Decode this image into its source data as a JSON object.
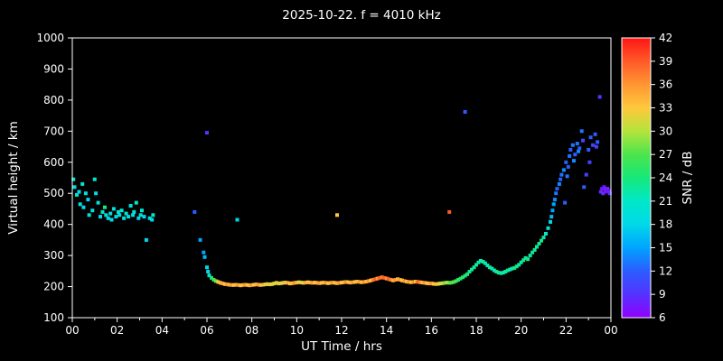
{
  "chart_data": {
    "type": "scatter",
    "title": "2025-10-22. f = 4010 kHz",
    "xlabel": "UT Time / hrs",
    "ylabel": "Virtual height / km",
    "xlim": [
      0,
      24
    ],
    "ylim": [
      100,
      1000
    ],
    "x_tick_values": [
      0,
      2,
      4,
      6,
      8,
      10,
      12,
      14,
      16,
      18,
      20,
      22,
      24
    ],
    "x_tick_labels": [
      "00",
      "02",
      "04",
      "06",
      "08",
      "10",
      "12",
      "14",
      "16",
      "18",
      "20",
      "22",
      "00"
    ],
    "y_tick_values": [
      100,
      200,
      300,
      400,
      500,
      600,
      700,
      800,
      900,
      1000
    ],
    "grid": false,
    "legend": "none",
    "marker": "square",
    "colors": {
      "background": "#000000",
      "axis": "#ffffff",
      "text": "#ffffff"
    },
    "colorbar": {
      "label": "SNR / dB",
      "min": 6,
      "max": 42,
      "tick_values": [
        6,
        9,
        12,
        15,
        18,
        21,
        24,
        27,
        30,
        33,
        36,
        39,
        42
      ],
      "stops": [
        {
          "value": 6,
          "color": "#9000ff"
        },
        {
          "value": 9,
          "color": "#5533ff"
        },
        {
          "value": 12,
          "color": "#2b5cff"
        },
        {
          "value": 15,
          "color": "#00a4ff"
        },
        {
          "value": 18,
          "color": "#00d9e8"
        },
        {
          "value": 21,
          "color": "#00e8c8"
        },
        {
          "value": 24,
          "color": "#17e87a"
        },
        {
          "value": 27,
          "color": "#4ce44c"
        },
        {
          "value": 30,
          "color": "#b4e43c"
        },
        {
          "value": 33,
          "color": "#ffc83c"
        },
        {
          "value": 36,
          "color": "#ff9632"
        },
        {
          "value": 39,
          "color": "#ff5a28"
        },
        {
          "value": 42,
          "color": "#ff1414"
        }
      ]
    },
    "points": [
      [
        0.05,
        545,
        21
      ],
      [
        0.1,
        520,
        19
      ],
      [
        0.2,
        495,
        20
      ],
      [
        0.3,
        505,
        18
      ],
      [
        0.35,
        465,
        19
      ],
      [
        0.45,
        530,
        21
      ],
      [
        0.5,
        455,
        18
      ],
      [
        0.6,
        500,
        19
      ],
      [
        0.7,
        480,
        18
      ],
      [
        0.75,
        430,
        20
      ],
      [
        0.9,
        445,
        19
      ],
      [
        1.0,
        545,
        21
      ],
      [
        1.05,
        500,
        18
      ],
      [
        1.15,
        470,
        19
      ],
      [
        1.25,
        425,
        18
      ],
      [
        1.35,
        440,
        20
      ],
      [
        1.45,
        455,
        24
      ],
      [
        1.5,
        430,
        19
      ],
      [
        1.6,
        420,
        18
      ],
      [
        1.7,
        435,
        19
      ],
      [
        1.75,
        415,
        18
      ],
      [
        1.85,
        450,
        19
      ],
      [
        1.95,
        425,
        18
      ],
      [
        2.05,
        440,
        21
      ],
      [
        2.1,
        430,
        18
      ],
      [
        2.2,
        445,
        20
      ],
      [
        2.3,
        420,
        19
      ],
      [
        2.4,
        435,
        21
      ],
      [
        2.5,
        425,
        18
      ],
      [
        2.6,
        460,
        19
      ],
      [
        2.7,
        430,
        18
      ],
      [
        2.75,
        440,
        20
      ],
      [
        2.85,
        470,
        21
      ],
      [
        2.95,
        420,
        18
      ],
      [
        3.05,
        430,
        19
      ],
      [
        3.1,
        445,
        21
      ],
      [
        3.2,
        425,
        18
      ],
      [
        3.3,
        350,
        18
      ],
      [
        3.45,
        420,
        19
      ],
      [
        3.55,
        415,
        18
      ],
      [
        3.6,
        430,
        21
      ],
      [
        5.45,
        440,
        12
      ],
      [
        5.7,
        350,
        15
      ],
      [
        5.85,
        310,
        15
      ],
      [
        5.9,
        295,
        16
      ],
      [
        6.0,
        695,
        9
      ],
      [
        6.0,
        262,
        18
      ],
      [
        6.05,
        248,
        18
      ],
      [
        6.1,
        236,
        21
      ],
      [
        6.2,
        228,
        24
      ],
      [
        6.3,
        222,
        26
      ],
      [
        6.4,
        218,
        28
      ],
      [
        6.5,
        215,
        33
      ],
      [
        6.6,
        212,
        34
      ],
      [
        6.7,
        210,
        35
      ],
      [
        6.8,
        208,
        33
      ],
      [
        6.9,
        207,
        36
      ],
      [
        7.0,
        206,
        34
      ],
      [
        7.1,
        205,
        36
      ],
      [
        7.2,
        205,
        33
      ],
      [
        7.3,
        206,
        34
      ],
      [
        7.35,
        415,
        18
      ],
      [
        7.4,
        205,
        36
      ],
      [
        7.5,
        204,
        33
      ],
      [
        7.6,
        205,
        34
      ],
      [
        7.7,
        206,
        36
      ],
      [
        7.8,
        205,
        33
      ],
      [
        7.9,
        204,
        34
      ],
      [
        8.0,
        205,
        36
      ],
      [
        8.1,
        206,
        33
      ],
      [
        8.2,
        207,
        34
      ],
      [
        8.3,
        206,
        36
      ],
      [
        8.4,
        205,
        33
      ],
      [
        8.5,
        206,
        34
      ],
      [
        8.6,
        207,
        31
      ],
      [
        8.7,
        208,
        33
      ],
      [
        8.8,
        207,
        31
      ],
      [
        8.9,
        208,
        33
      ],
      [
        9.0,
        210,
        31
      ],
      [
        9.1,
        212,
        33
      ],
      [
        9.2,
        210,
        31
      ],
      [
        9.3,
        211,
        33
      ],
      [
        9.4,
        212,
        31
      ],
      [
        9.5,
        213,
        33
      ],
      [
        9.6,
        212,
        35
      ],
      [
        9.7,
        210,
        33
      ],
      [
        9.8,
        211,
        34
      ],
      [
        9.9,
        212,
        36
      ],
      [
        10.0,
        213,
        34
      ],
      [
        10.1,
        214,
        33
      ],
      [
        10.2,
        213,
        31
      ],
      [
        10.3,
        212,
        33
      ],
      [
        10.4,
        213,
        35
      ],
      [
        10.5,
        214,
        33
      ],
      [
        10.6,
        213,
        34
      ],
      [
        10.7,
        212,
        36
      ],
      [
        10.8,
        213,
        33
      ],
      [
        10.9,
        212,
        34
      ],
      [
        11.0,
        211,
        36
      ],
      [
        11.1,
        212,
        33
      ],
      [
        11.2,
        213,
        34
      ],
      [
        11.3,
        212,
        36
      ],
      [
        11.4,
        211,
        33
      ],
      [
        11.5,
        212,
        34
      ],
      [
        11.6,
        213,
        36
      ],
      [
        11.7,
        212,
        33
      ],
      [
        11.8,
        430,
        33
      ],
      [
        11.8,
        211,
        34
      ],
      [
        11.9,
        212,
        36
      ],
      [
        12.0,
        213,
        33
      ],
      [
        12.1,
        214,
        34
      ],
      [
        12.2,
        215,
        36
      ],
      [
        12.3,
        214,
        33
      ],
      [
        12.4,
        213,
        34
      ],
      [
        12.5,
        214,
        36
      ],
      [
        12.6,
        215,
        33
      ],
      [
        12.7,
        216,
        34
      ],
      [
        12.8,
        215,
        36
      ],
      [
        12.9,
        214,
        33
      ],
      [
        13.0,
        215,
        36
      ],
      [
        13.1,
        216,
        34
      ],
      [
        13.2,
        218,
        36
      ],
      [
        13.3,
        220,
        33
      ],
      [
        13.4,
        222,
        37
      ],
      [
        13.5,
        224,
        39
      ],
      [
        13.6,
        226,
        36
      ],
      [
        13.7,
        228,
        39
      ],
      [
        13.8,
        230,
        37
      ],
      [
        13.9,
        228,
        39
      ],
      [
        14.0,
        226,
        36
      ],
      [
        14.1,
        224,
        39
      ],
      [
        14.2,
        222,
        37
      ],
      [
        14.3,
        220,
        34
      ],
      [
        14.4,
        222,
        36
      ],
      [
        14.5,
        224,
        34
      ],
      [
        14.6,
        222,
        36
      ],
      [
        14.7,
        220,
        33
      ],
      [
        14.8,
        218,
        36
      ],
      [
        14.9,
        216,
        34
      ],
      [
        15.0,
        215,
        36
      ],
      [
        15.1,
        214,
        33
      ],
      [
        15.2,
        215,
        36
      ],
      [
        15.3,
        216,
        34
      ],
      [
        15.4,
        215,
        39
      ],
      [
        15.5,
        214,
        36
      ],
      [
        15.6,
        213,
        34
      ],
      [
        15.7,
        212,
        36
      ],
      [
        15.8,
        211,
        33
      ],
      [
        15.9,
        210,
        34
      ],
      [
        16.0,
        210,
        36
      ],
      [
        16.1,
        209,
        33
      ],
      [
        16.2,
        208,
        34
      ],
      [
        16.3,
        209,
        31
      ],
      [
        16.4,
        210,
        33
      ],
      [
        16.5,
        211,
        30
      ],
      [
        16.6,
        212,
        28
      ],
      [
        16.7,
        213,
        30
      ],
      [
        16.8,
        440,
        39
      ],
      [
        16.8,
        212,
        28
      ],
      [
        16.9,
        213,
        27
      ],
      [
        17.0,
        215,
        27
      ],
      [
        17.1,
        218,
        27
      ],
      [
        17.2,
        222,
        25
      ],
      [
        17.3,
        226,
        24
      ],
      [
        17.4,
        230,
        25
      ],
      [
        17.5,
        762,
        12
      ],
      [
        17.5,
        235,
        24
      ],
      [
        17.6,
        240,
        25
      ],
      [
        17.7,
        248,
        22
      ],
      [
        17.8,
        255,
        24
      ],
      [
        17.9,
        262,
        22
      ],
      [
        18.0,
        270,
        24
      ],
      [
        18.1,
        278,
        22
      ],
      [
        18.2,
        283,
        21
      ],
      [
        18.3,
        280,
        24
      ],
      [
        18.4,
        275,
        22
      ],
      [
        18.5,
        268,
        21
      ],
      [
        18.6,
        262,
        24
      ],
      [
        18.7,
        258,
        22
      ],
      [
        18.8,
        252,
        21
      ],
      [
        18.9,
        248,
        24
      ],
      [
        19.0,
        245,
        22
      ],
      [
        19.1,
        243,
        24
      ],
      [
        19.2,
        245,
        21
      ],
      [
        19.3,
        248,
        22
      ],
      [
        19.4,
        252,
        24
      ],
      [
        19.5,
        255,
        21
      ],
      [
        19.6,
        258,
        22
      ],
      [
        19.7,
        260,
        24
      ],
      [
        19.8,
        265,
        22
      ],
      [
        19.9,
        270,
        24
      ],
      [
        20.0,
        278,
        21
      ],
      [
        20.1,
        285,
        24
      ],
      [
        20.2,
        292,
        22
      ],
      [
        20.3,
        288,
        24
      ],
      [
        20.4,
        300,
        22
      ],
      [
        20.5,
        310,
        24
      ],
      [
        20.6,
        318,
        22
      ],
      [
        20.7,
        328,
        24
      ],
      [
        20.8,
        338,
        22
      ],
      [
        20.9,
        348,
        24
      ],
      [
        21.0,
        358,
        22
      ],
      [
        21.1,
        370,
        21
      ],
      [
        21.2,
        388,
        19
      ],
      [
        21.3,
        408,
        18
      ],
      [
        21.35,
        425,
        16
      ],
      [
        21.4,
        445,
        15
      ],
      [
        21.45,
        465,
        15
      ],
      [
        21.5,
        480,
        14
      ],
      [
        21.55,
        500,
        13
      ],
      [
        21.6,
        515,
        12
      ],
      [
        21.7,
        530,
        14
      ],
      [
        21.75,
        545,
        12
      ],
      [
        21.8,
        560,
        13
      ],
      [
        21.9,
        575,
        14
      ],
      [
        21.95,
        470,
        12
      ],
      [
        22.0,
        600,
        12
      ],
      [
        22.05,
        555,
        13
      ],
      [
        22.1,
        585,
        12
      ],
      [
        22.15,
        620,
        13
      ],
      [
        22.2,
        640,
        12
      ],
      [
        22.3,
        655,
        13
      ],
      [
        22.35,
        605,
        14
      ],
      [
        22.4,
        625,
        12
      ],
      [
        22.5,
        660,
        13
      ],
      [
        22.55,
        635,
        14
      ],
      [
        22.6,
        645,
        12
      ],
      [
        22.7,
        700,
        13
      ],
      [
        22.75,
        670,
        10
      ],
      [
        22.8,
        520,
        12
      ],
      [
        22.9,
        560,
        10
      ],
      [
        23.0,
        640,
        12
      ],
      [
        23.05,
        600,
        10
      ],
      [
        23.1,
        680,
        12
      ],
      [
        23.2,
        655,
        10
      ],
      [
        23.3,
        690,
        12
      ],
      [
        23.35,
        650,
        10
      ],
      [
        23.4,
        665,
        12
      ],
      [
        23.5,
        810,
        9
      ],
      [
        23.55,
        505,
        9
      ],
      [
        23.6,
        515,
        7
      ],
      [
        23.65,
        500,
        9
      ],
      [
        23.7,
        520,
        7
      ],
      [
        23.75,
        510,
        9
      ],
      [
        23.8,
        505,
        6
      ],
      [
        23.85,
        515,
        9
      ],
      [
        23.9,
        508,
        7
      ],
      [
        23.95,
        500,
        9
      ]
    ]
  }
}
